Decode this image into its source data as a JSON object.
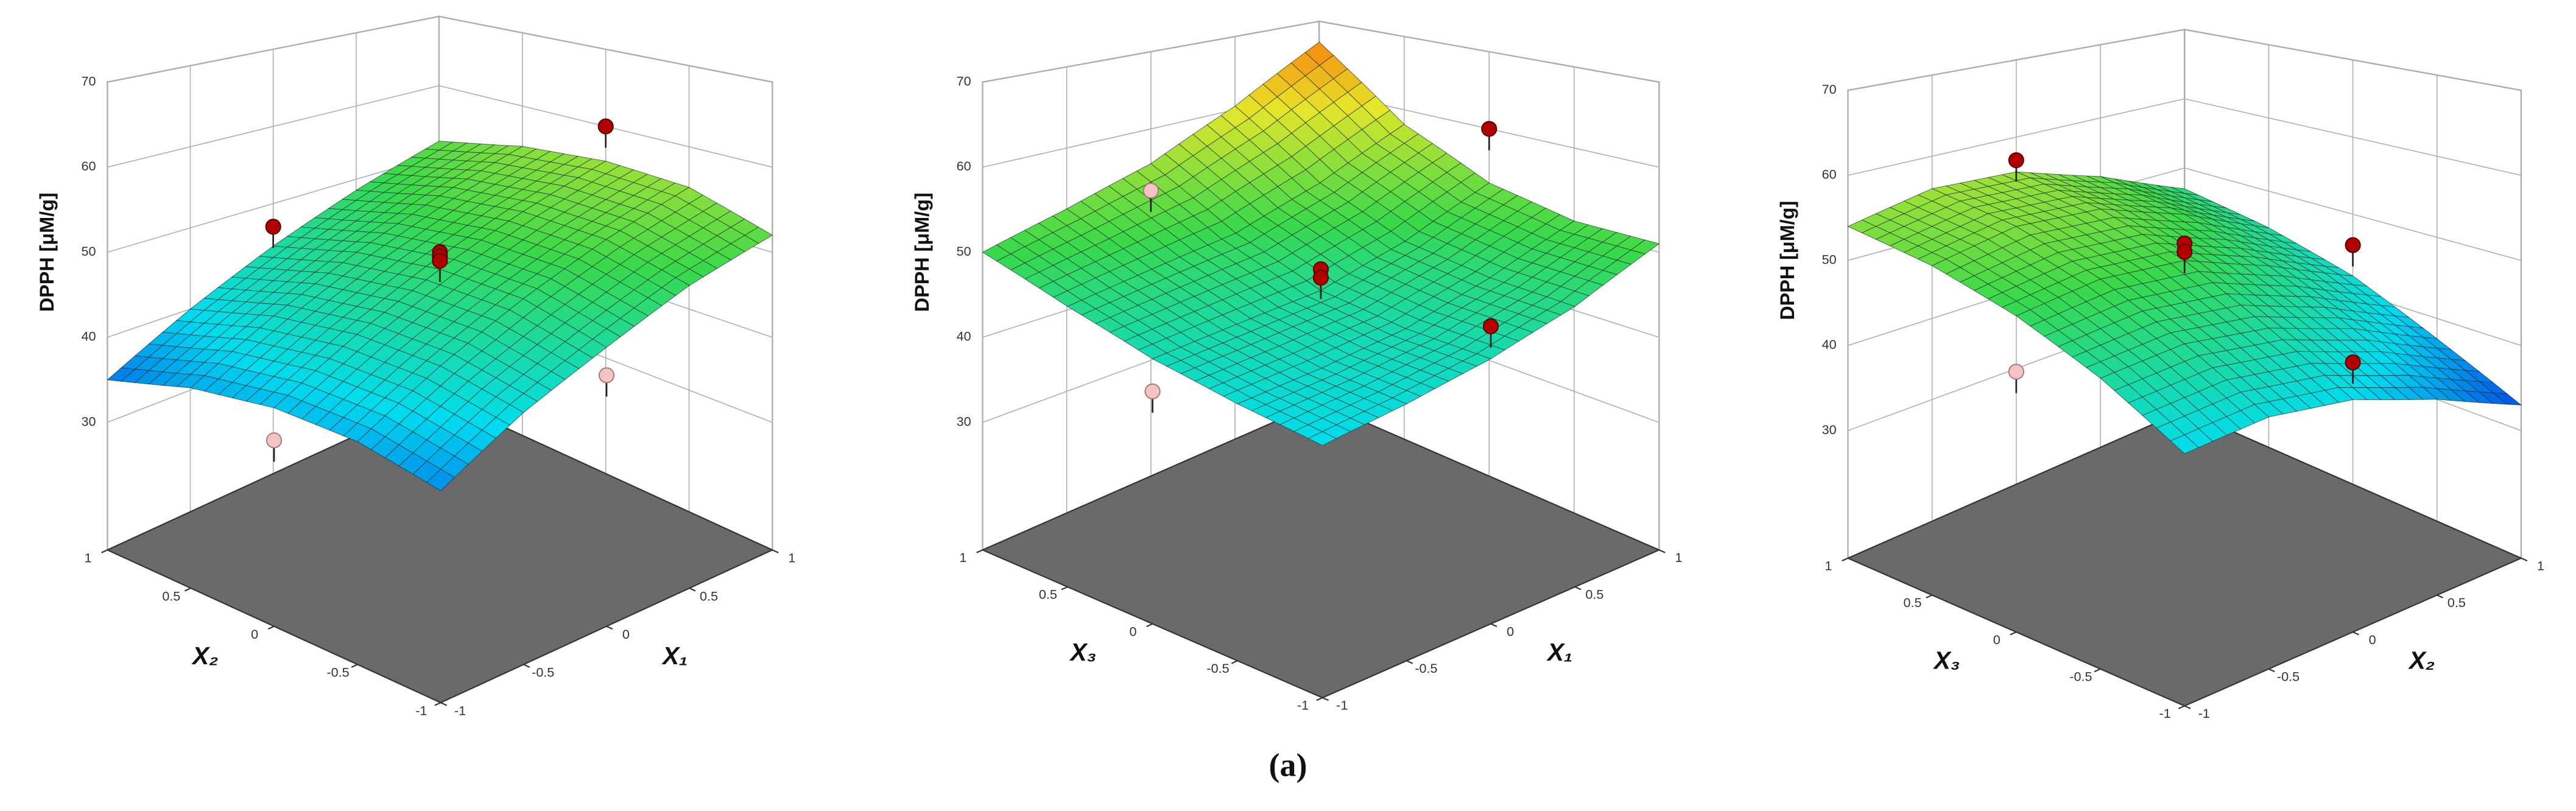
{
  "chart_data": [
    {
      "type": "surface3d",
      "x_label": "X₁",
      "y_label": "X₂",
      "z_label": "DPPH [μM/g]",
      "xlim": [
        -1,
        1
      ],
      "ylim": [
        -1,
        1
      ],
      "zlim": [
        15,
        70
      ],
      "xticks": [
        -1,
        -0.5,
        0,
        0.5,
        1
      ],
      "yticks": [
        -1,
        -0.5,
        0,
        0.5,
        1
      ],
      "zticks": [
        30,
        40,
        50,
        60,
        70
      ],
      "colormap": [
        "#0010e0",
        "#00dcf0",
        "#3ad94a",
        "#e6e62a",
        "#ff5a00"
      ],
      "point_colors": {
        "above": "#b00000",
        "below": "#f4c4c4"
      },
      "z": [
        [
          36,
          38,
          38.5,
          37.5,
          35
        ],
        [
          41,
          43,
          43.5,
          42.5,
          40
        ],
        [
          45,
          47.5,
          48,
          47,
          44.5
        ],
        [
          49,
          51.5,
          52,
          51,
          48.5
        ],
        [
          52,
          55,
          55.5,
          54.5,
          52
        ]
      ],
      "points": {
        "x": [
          0,
          -1,
          0,
          1,
          0,
          0,
          0
        ],
        "y": [
          1,
          0,
          -1,
          0,
          0,
          0,
          0
        ],
        "z": [
          47,
          35,
          42,
          60,
          50,
          49.5,
          49
        ]
      }
    },
    {
      "type": "surface3d",
      "x_label": "X₁",
      "y_label": "X₃",
      "z_label": "DPPH [μM/g]",
      "xlim": [
        -1,
        1
      ],
      "ylim": [
        -1,
        1
      ],
      "zlim": [
        15,
        70
      ],
      "xticks": [
        -1,
        -0.5,
        0,
        0.5,
        1
      ],
      "yticks": [
        -1,
        -0.5,
        0,
        0.5,
        1
      ],
      "zticks": [
        30,
        40,
        50,
        60,
        70
      ],
      "colormap": [
        "#0010e0",
        "#00dcf0",
        "#3ad94a",
        "#e6e62a",
        "#ff5a00"
      ],
      "point_colors": {
        "above": "#b00000",
        "below": "#f4c4c4"
      },
      "z": [
        [
          40,
          41.5,
          43.5,
          46.5,
          50
        ],
        [
          41.5,
          42.5,
          44.5,
          48,
          52.5
        ],
        [
          43.5,
          44,
          45.5,
          49.5,
          55.5
        ],
        [
          46.5,
          47,
          48.5,
          53,
          60.5
        ],
        [
          51,
          51,
          53,
          58,
          67
        ]
      ],
      "points": {
        "x": [
          -1,
          1,
          0,
          0,
          0,
          0
        ],
        "y": [
          0,
          0,
          -1,
          1,
          0,
          0
        ],
        "z": [
          40,
          60,
          47,
          52,
          48,
          47
        ]
      }
    },
    {
      "type": "surface3d",
      "x_label": "X₂",
      "y_label": "X₃",
      "z_label": "DPPH [μM/g]",
      "xlim": [
        -1,
        1
      ],
      "ylim": [
        -1,
        1
      ],
      "zlim": [
        15,
        70
      ],
      "xticks": [
        -1,
        -0.5,
        0,
        0.5,
        1
      ],
      "yticks": [
        -1,
        -0.5,
        0,
        0.5,
        1
      ],
      "zticks": [
        30,
        40,
        50,
        60,
        70
      ],
      "colormap": [
        "#0010e0",
        "#00dcf0",
        "#3ad94a",
        "#e6e62a",
        "#ff5a00"
      ],
      "point_colors": {
        "above": "#b00000",
        "below": "#f4c4c4"
      },
      "z": [
        [
          40,
          45,
          49,
          52,
          54
        ],
        [
          41,
          46,
          50.5,
          54,
          56
        ],
        [
          40,
          45,
          50,
          53.5,
          55.5
        ],
        [
          37,
          42,
          46.5,
          50,
          52
        ],
        [
          33,
          37.5,
          42,
          45,
          47
        ]
      ],
      "points": {
        "x": [
          -1,
          1,
          0,
          0,
          0,
          0
        ],
        "y": [
          0,
          0,
          -1,
          1,
          0,
          0
        ],
        "z": [
          43,
          46,
          44,
          57,
          52,
          51
        ]
      }
    }
  ],
  "caption": "(a)"
}
